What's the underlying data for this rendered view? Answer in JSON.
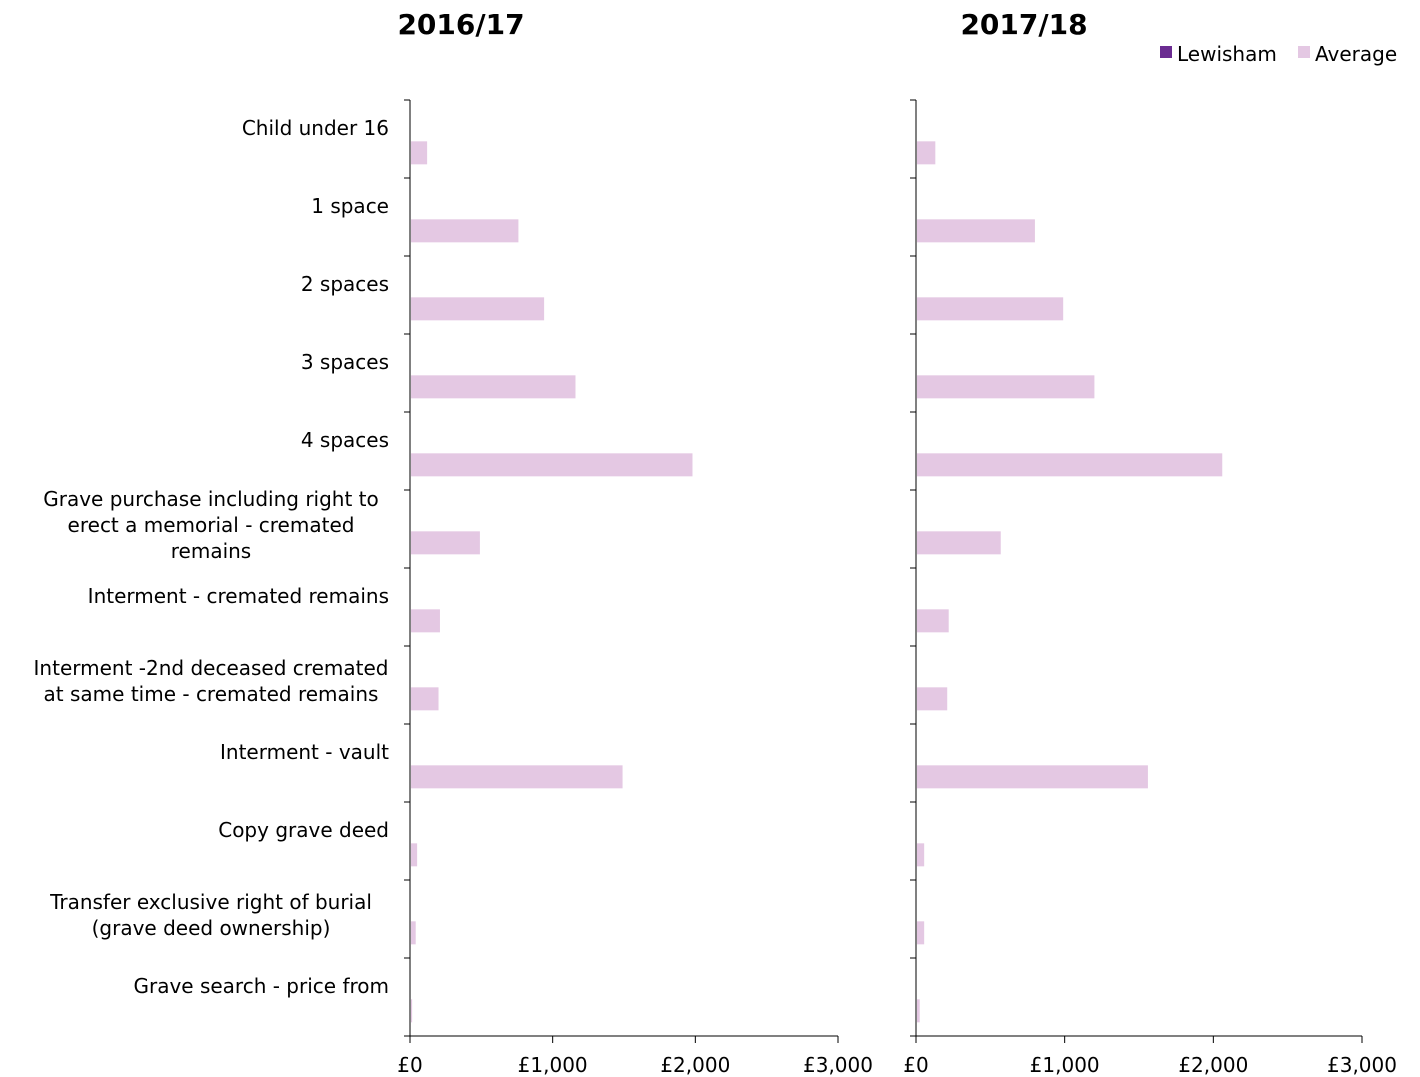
{
  "chart_data": {
    "type": "bar",
    "orientation": "horizontal",
    "categories": [
      "Child under 16",
      "1 space",
      "2 spaces",
      "3 spaces",
      "4 spaces",
      "Grave purchase including right to erect a memorial - cremated remains",
      "Interment - cremated remains",
      "Interment -2nd deceased cremated at same time - cremated remains",
      "Interment - vault",
      "Copy grave deed",
      "Transfer exclusive right of burial (grave deed ownership)",
      "Grave search - price from"
    ],
    "category_lines": [
      [
        "Child under 16"
      ],
      [
        "1 space"
      ],
      [
        "2 spaces"
      ],
      [
        "3 spaces"
      ],
      [
        "4 spaces"
      ],
      [
        "Grave purchase including right to",
        "erect a memorial - cremated",
        "remains"
      ],
      [
        "Interment - cremated remains"
      ],
      [
        "Interment -2nd deceased cremated",
        "at same time - cremated remains"
      ],
      [
        "Interment - vault"
      ],
      [
        "Copy grave deed"
      ],
      [
        "Transfer exclusive right of burial",
        "(grave deed ownership)"
      ],
      [
        "Grave search - price from"
      ]
    ],
    "legend": {
      "placement": "top-right",
      "entries": [
        {
          "name": "Lewisham",
          "color": "#6b2c91"
        },
        {
          "name": "Average",
          "color": "#e4c8e3"
        }
      ]
    },
    "xlim": [
      0,
      3000
    ],
    "x_ticks": [
      0,
      1000,
      2000,
      3000
    ],
    "x_tick_labels": [
      "£0",
      "£1,000",
      "£2,000",
      "£3,000"
    ],
    "grid": false,
    "panels": [
      {
        "title": "2016/17",
        "series": [
          {
            "name": "Lewisham",
            "values": [
              null,
              null,
              null,
              null,
              null,
              null,
              null,
              null,
              null,
              null,
              null,
              null
            ]
          },
          {
            "name": "Average",
            "values": [
              120,
              760,
              940,
              1160,
              1980,
              490,
              210,
              200,
              1490,
              50,
              40,
              15
            ]
          }
        ]
      },
      {
        "title": "2017/18",
        "series": [
          {
            "name": "Lewisham",
            "values": [
              null,
              null,
              null,
              null,
              null,
              null,
              null,
              null,
              null,
              null,
              null,
              null
            ]
          },
          {
            "name": "Average",
            "values": [
              130,
              800,
              990,
              1200,
              2060,
              570,
              220,
              210,
              1560,
              55,
              55,
              25
            ]
          }
        ]
      }
    ]
  }
}
